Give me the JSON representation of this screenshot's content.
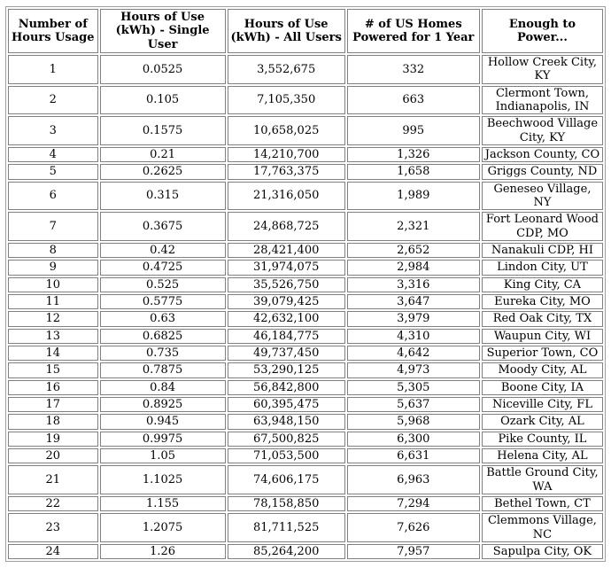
{
  "chart_data": {
    "type": "table",
    "title": "",
    "headers": [
      "Number of Hours Usage",
      "Hours of Use (kWh) - Single User",
      "Hours of Use (kWh) - All Users",
      "# of US Homes Powered for 1 Year",
      "Enough to Power..."
    ],
    "rows": [
      [
        "1",
        "0.0525",
        "3,552,675",
        "332",
        "Hollow Creek City, KY"
      ],
      [
        "2",
        "0.105",
        "7,105,350",
        "663",
        "Clermont Town, Indianapolis, IN"
      ],
      [
        "3",
        "0.1575",
        "10,658,025",
        "995",
        "Beechwood Village City, KY"
      ],
      [
        "4",
        "0.21",
        "14,210,700",
        "1,326",
        "Jackson County, CO"
      ],
      [
        "5",
        "0.2625",
        "17,763,375",
        "1,658",
        "Griggs County, ND"
      ],
      [
        "6",
        "0.315",
        "21,316,050",
        "1,989",
        "Geneseo Village, NY"
      ],
      [
        "7",
        "0.3675",
        "24,868,725",
        "2,321",
        "Fort Leonard Wood CDP, MO"
      ],
      [
        "8",
        "0.42",
        "28,421,400",
        "2,652",
        "Nanakuli CDP, HI"
      ],
      [
        "9",
        "0.4725",
        "31,974,075",
        "2,984",
        "Lindon City, UT"
      ],
      [
        "10",
        "0.525",
        "35,526,750",
        "3,316",
        "King City, CA"
      ],
      [
        "11",
        "0.5775",
        "39,079,425",
        "3,647",
        "Eureka City, MO"
      ],
      [
        "12",
        "0.63",
        "42,632,100",
        "3,979",
        "Red Oak City, TX"
      ],
      [
        "13",
        "0.6825",
        "46,184,775",
        "4,310",
        "Waupun City, WI"
      ],
      [
        "14",
        "0.735",
        "49,737,450",
        "4,642",
        "Superior Town, CO"
      ],
      [
        "15",
        "0.7875",
        "53,290,125",
        "4,973",
        "Moody City, AL"
      ],
      [
        "16",
        "0.84",
        "56,842,800",
        "5,305",
        "Boone City, IA"
      ],
      [
        "17",
        "0.8925",
        "60,395,475",
        "5,637",
        "Niceville City, FL"
      ],
      [
        "18",
        "0.945",
        "63,948,150",
        "5,968",
        "Ozark City, AL"
      ],
      [
        "19",
        "0.9975",
        "67,500,825",
        "6,300",
        "Pike County, IL"
      ],
      [
        "20",
        "1.05",
        "71,053,500",
        "6,631",
        "Helena City, AL"
      ],
      [
        "21",
        "1.1025",
        "74,606,175",
        "6,963",
        "Battle Ground City, WA"
      ],
      [
        "22",
        "1.155",
        "78,158,850",
        "7,294",
        "Bethel Town, CT"
      ],
      [
        "23",
        "1.2075",
        "81,711,525",
        "7,626",
        "Clemmons Village, NC"
      ],
      [
        "24",
        "1.26",
        "85,264,200",
        "7,957",
        "Sapulpa City, OK"
      ]
    ],
    "layout": {
      "grid": true,
      "header_bold": true,
      "cell_alignment": "center"
    }
  },
  "colors": {
    "border": "#808080",
    "text": "#000000",
    "background": "#ffffff"
  }
}
